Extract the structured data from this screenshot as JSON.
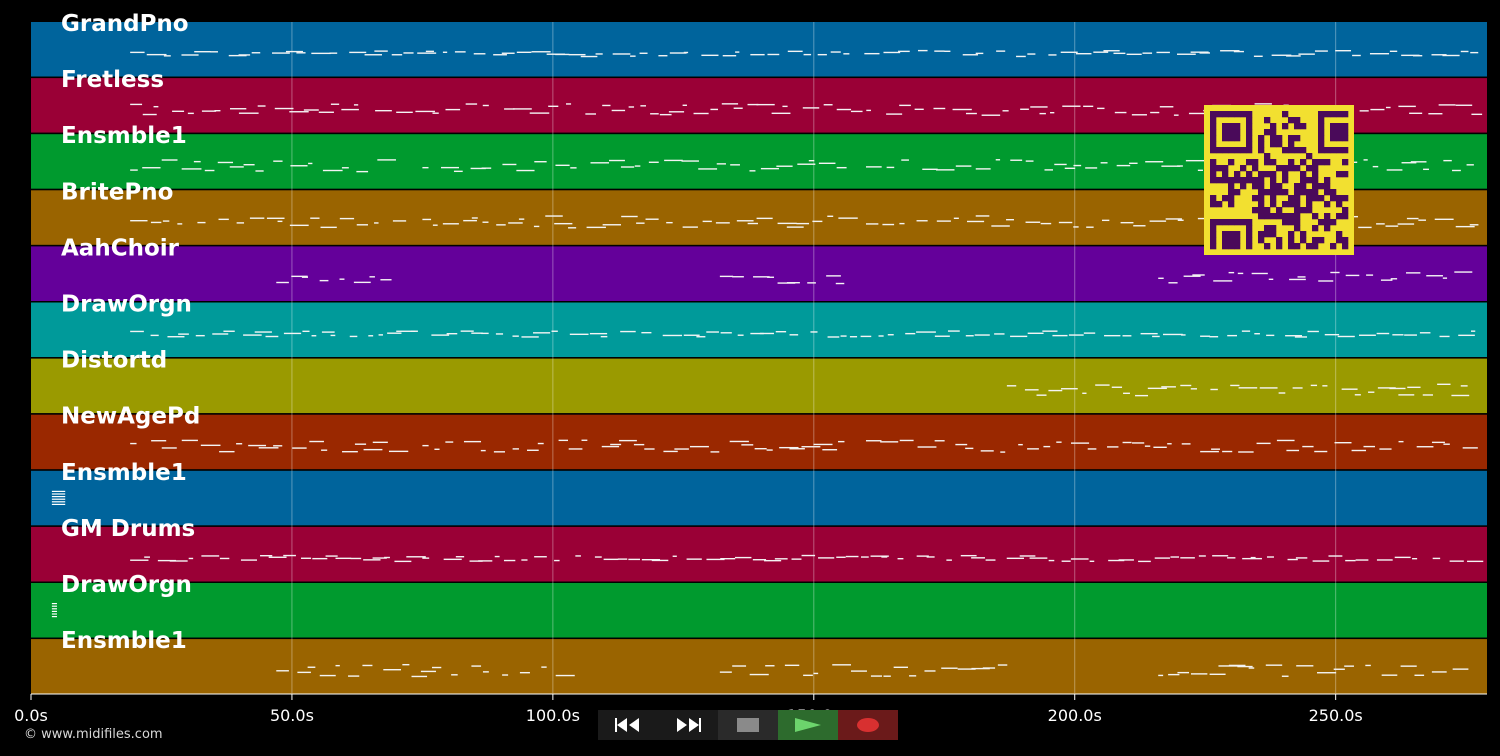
{
  "tracks": [
    {
      "name": "GrandPno",
      "color": "#00649c"
    },
    {
      "name": "Fretless",
      "color": "#9a0036"
    },
    {
      "name": "Ensmble1",
      "color": "#009a2e"
    },
    {
      "name": "BritePno",
      "color": "#9a6400"
    },
    {
      "name": "AahChoir",
      "color": "#64009a"
    },
    {
      "name": "DrawOrgn",
      "color": "#009a9a"
    },
    {
      "name": "Distortd",
      "color": "#9a9a00"
    },
    {
      "name": "NewAgePd",
      "color": "#9a2800"
    },
    {
      "name": "Ensmble1",
      "color": "#00649c"
    },
    {
      "name": "GM Drums",
      "color": "#9a0036"
    },
    {
      "name": "DrawOrgn",
      "color": "#009a2e"
    },
    {
      "name": "Ensmble1",
      "color": "#9a6400"
    }
  ],
  "timeline": {
    "unit": "s",
    "max": 279,
    "ticks": [
      {
        "value": 0,
        "label": "0.0s"
      },
      {
        "value": 50,
        "label": "50.0s"
      },
      {
        "value": 100,
        "label": "100.0s"
      },
      {
        "value": 150,
        "label": "150.0s"
      },
      {
        "value": 200,
        "label": "200.0s"
      },
      {
        "value": 250,
        "label": "250.0s"
      }
    ]
  },
  "footer": {
    "copyright": "© www.midifiles.com"
  },
  "transport": {
    "rewind_icon": "rewind-icon",
    "forward_icon": "fast-forward-icon",
    "stop_icon": "stop-icon",
    "play_icon": "play-icon",
    "record_icon": "record-icon",
    "colors": {
      "button_bg": "#1a1a1a",
      "stop": "#8a8a8a",
      "play_bg": "#2d6b2d",
      "play": "#6cd46c",
      "record_bg": "#6b1a1a",
      "record": "#d83030"
    }
  },
  "qr_colors": {
    "fg": "#4a0a5a",
    "bg": "#f2e030"
  }
}
